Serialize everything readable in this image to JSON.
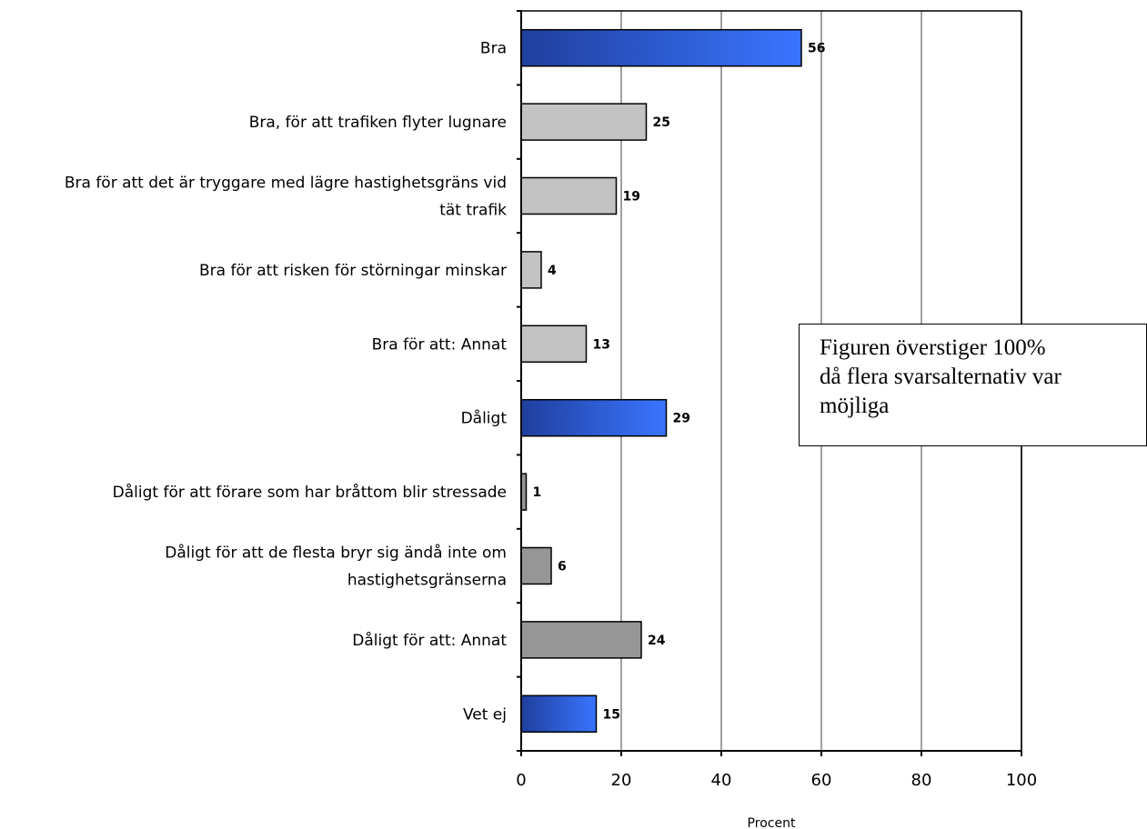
{
  "chart_data": {
    "type": "bar",
    "orientation": "horizontal",
    "categories": [
      "Bra",
      "Bra, för att trafiken flyter lugnare",
      "Bra för att det är tryggare med lägre hastighetsgräns vid tät trafik",
      "Bra för att risken för störningar minskar",
      "Bra för att: Annat",
      "Dåligt",
      "Dåligt för att förare som har bråttom blir stressade",
      "Dåligt för att de flesta bryr sig ändå inte om hastighetsgränserna",
      "Dåligt för att: Annat",
      "Vet ej"
    ],
    "category_lines": [
      [
        "Bra"
      ],
      [
        "Bra, för att trafiken flyter lugnare"
      ],
      [
        "Bra för att det är tryggare med lägre hastighetsgräns vid",
        "tät trafik"
      ],
      [
        "Bra för att risken för störningar minskar"
      ],
      [
        "Bra för att: Annat"
      ],
      [
        "Dåligt"
      ],
      [
        "Dåligt för att förare som har bråttom blir stressade"
      ],
      [
        "Dåligt för att de flesta bryr sig ändå inte om",
        "hastighetsgränserna"
      ],
      [
        "Dåligt för att: Annat"
      ],
      [
        "Vet ej"
      ]
    ],
    "values": [
      56,
      25,
      19,
      4,
      13,
      29,
      1,
      6,
      24,
      15
    ],
    "bar_colors": [
      "blue",
      "lightgray",
      "lightgray",
      "lightgray",
      "lightgray",
      "blue",
      "gray",
      "gray",
      "gray",
      "blue"
    ],
    "colors": {
      "blue_start": "#1f3f9e",
      "blue_end": "#3a75ff",
      "lightgray": "#c3c3c3",
      "gray": "#969696",
      "gridline": "#a0a0a0"
    },
    "xlim": [
      0,
      100
    ],
    "xticks": [
      0,
      20,
      40,
      60,
      80,
      100
    ],
    "xlabel": "Procent",
    "ylabel": "",
    "title": "",
    "grid": "vertical",
    "legend": "none"
  },
  "annotation": {
    "lines": [
      "Figuren överstiger 100%",
      "då flera svarsalternativ var",
      "möjliga"
    ]
  }
}
